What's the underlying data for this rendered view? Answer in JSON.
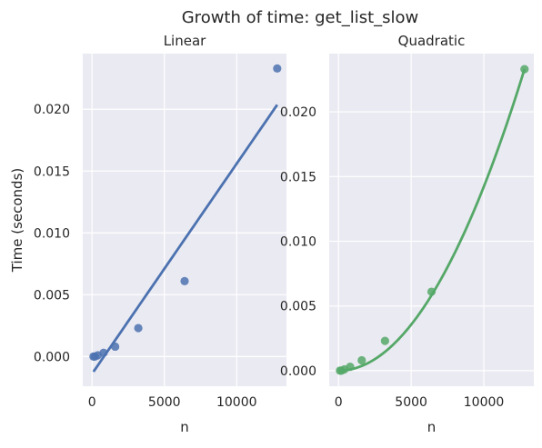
{
  "figure": {
    "title": "Growth of time: get_list_slow"
  },
  "chart_data": [
    {
      "type": "scatter",
      "title": "Linear",
      "xlabel": "n",
      "ylabel": "Time (seconds)",
      "xlim": [
        -640,
        13440
      ],
      "ylim": [
        -0.0024,
        0.0245
      ],
      "x_ticks": [
        0,
        5000,
        10000
      ],
      "x_tick_labels": [
        "0",
        "5000",
        "10000"
      ],
      "y_ticks": [
        0.0,
        0.005,
        0.01,
        0.015,
        0.02
      ],
      "y_tick_labels": [
        "0.000",
        "0.005",
        "0.010",
        "0.015",
        "0.020"
      ],
      "grid": true,
      "color": "#4c72b0",
      "points": {
        "x": [
          100,
          200,
          400,
          800,
          1600,
          3200,
          6400,
          12800
        ],
        "y": [
          0.0,
          0.0,
          0.0001,
          0.0003,
          0.0008,
          0.0023,
          0.0061,
          0.0233
        ]
      },
      "fit": {
        "kind": "linear",
        "coef": [
          0.0017,
          -0.0014
        ]
      }
    },
    {
      "type": "scatter",
      "title": "Quadratic",
      "xlabel": "n",
      "ylabel": "",
      "xlim": [
        -640,
        13440
      ],
      "ylim": [
        -0.0012,
        0.0245
      ],
      "x_ticks": [
        0,
        5000,
        10000
      ],
      "x_tick_labels": [
        "0",
        "5000",
        "10000"
      ],
      "y_ticks": [
        0.0,
        0.005,
        0.01,
        0.015,
        0.02
      ],
      "y_tick_labels": [
        "0.000",
        "0.005",
        "0.010",
        "0.015",
        "0.020"
      ],
      "grid": true,
      "color": "#55a868",
      "points": {
        "x": [
          100,
          200,
          400,
          800,
          1600,
          3200,
          6400,
          12800
        ],
        "y": [
          0.0,
          0.0,
          0.0001,
          0.0003,
          0.0008,
          0.0023,
          0.0061,
          0.0233
        ]
      },
      "fit": {
        "kind": "quadratic",
        "coef": [
          0.0001422,
          2e-07,
          0.0
        ]
      }
    }
  ]
}
